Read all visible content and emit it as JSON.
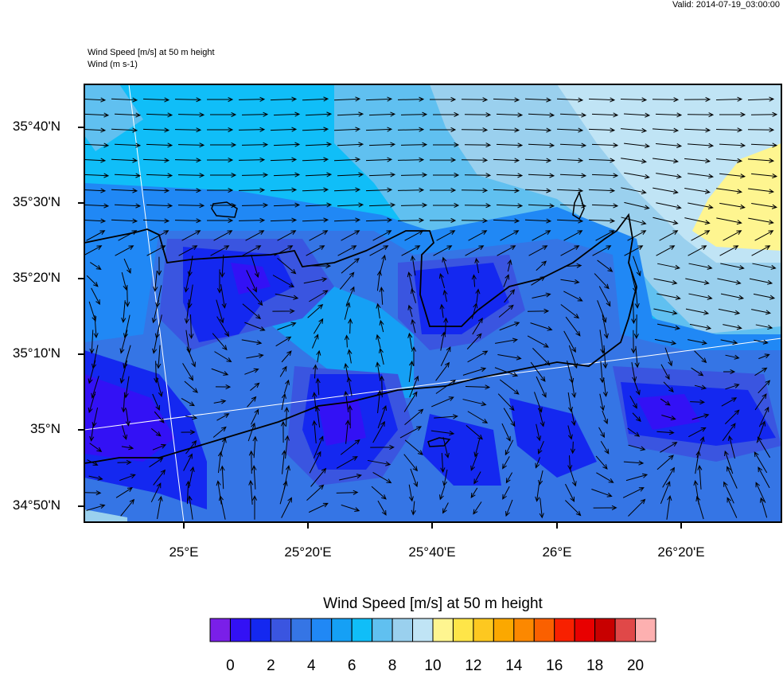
{
  "header": {
    "valid_time": "Valid: 2014-07-19_03:00:00",
    "field_title": "Wind Speed [m/s] at 50 m height",
    "vector_title": "Wind   (m s-1)"
  },
  "map": {
    "lat_labels": [
      "35°40'N",
      "35°30'N",
      "35°20'N",
      "35°10'N",
      "35°N",
      "34°50'N"
    ],
    "lon_labels": [
      "25°E",
      "25°20'E",
      "25°40'E",
      "26°E",
      "26°20'E"
    ],
    "coastline_color": "#000000",
    "grid_line_color": "#ffffff",
    "wind_vectors": "arrows"
  },
  "colorbar": {
    "title": "Wind Speed [m/s] at 50 m height",
    "labels": [
      "0",
      "2",
      "4",
      "6",
      "8",
      "10",
      "12",
      "14",
      "16",
      "18",
      "20"
    ],
    "colors": [
      "#7a1fe8",
      "#3311f5",
      "#1428f0",
      "#3a55e0",
      "#3575e5",
      "#2088f5",
      "#15a0f5",
      "#10bef8",
      "#60c0f0",
      "#9ad0ee",
      "#c0e4f5",
      "#fef590",
      "#fee548",
      "#fdc820",
      "#fba800",
      "#fc8800",
      "#fa6000",
      "#f82000",
      "#e80000",
      "#c80000",
      "#e04848",
      "#fdb0b0"
    ]
  }
}
